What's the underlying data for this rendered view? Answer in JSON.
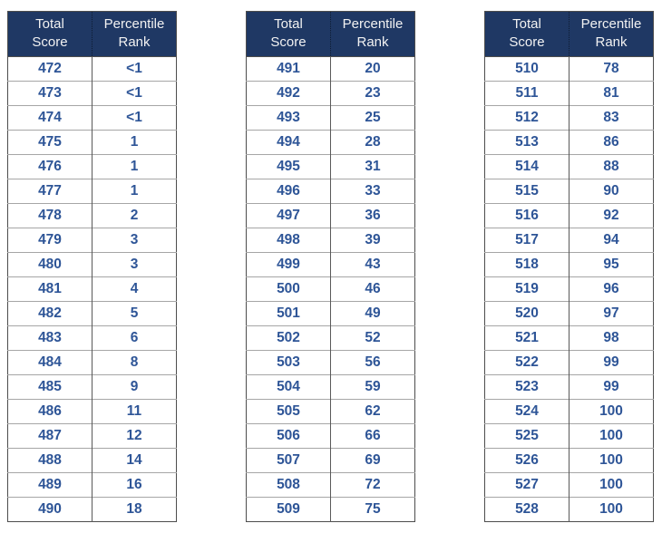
{
  "columns": [
    "Total Score",
    "Percentile Rank"
  ],
  "tables": [
    {
      "name": "scores-472-490",
      "rows": [
        [
          "472",
          "<1"
        ],
        [
          "473",
          "<1"
        ],
        [
          "474",
          "<1"
        ],
        [
          "475",
          "1"
        ],
        [
          "476",
          "1"
        ],
        [
          "477",
          "1"
        ],
        [
          "478",
          "2"
        ],
        [
          "479",
          "3"
        ],
        [
          "480",
          "3"
        ],
        [
          "481",
          "4"
        ],
        [
          "482",
          "5"
        ],
        [
          "483",
          "6"
        ],
        [
          "484",
          "8"
        ],
        [
          "485",
          "9"
        ],
        [
          "486",
          "11"
        ],
        [
          "487",
          "12"
        ],
        [
          "488",
          "14"
        ],
        [
          "489",
          "16"
        ],
        [
          "490",
          "18"
        ]
      ]
    },
    {
      "name": "scores-491-509",
      "rows": [
        [
          "491",
          "20"
        ],
        [
          "492",
          "23"
        ],
        [
          "493",
          "25"
        ],
        [
          "494",
          "28"
        ],
        [
          "495",
          "31"
        ],
        [
          "496",
          "33"
        ],
        [
          "497",
          "36"
        ],
        [
          "498",
          "39"
        ],
        [
          "499",
          "43"
        ],
        [
          "500",
          "46"
        ],
        [
          "501",
          "49"
        ],
        [
          "502",
          "52"
        ],
        [
          "503",
          "56"
        ],
        [
          "504",
          "59"
        ],
        [
          "505",
          "62"
        ],
        [
          "506",
          "66"
        ],
        [
          "507",
          "69"
        ],
        [
          "508",
          "72"
        ],
        [
          "509",
          "75"
        ]
      ]
    },
    {
      "name": "scores-510-528",
      "rows": [
        [
          "510",
          "78"
        ],
        [
          "511",
          "81"
        ],
        [
          "512",
          "83"
        ],
        [
          "513",
          "86"
        ],
        [
          "514",
          "88"
        ],
        [
          "515",
          "90"
        ],
        [
          "516",
          "92"
        ],
        [
          "517",
          "94"
        ],
        [
          "518",
          "95"
        ],
        [
          "519",
          "96"
        ],
        [
          "520",
          "97"
        ],
        [
          "521",
          "98"
        ],
        [
          "522",
          "99"
        ],
        [
          "523",
          "99"
        ],
        [
          "524",
          "100"
        ],
        [
          "525",
          "100"
        ],
        [
          "526",
          "100"
        ],
        [
          "527",
          "100"
        ],
        [
          "528",
          "100"
        ]
      ]
    }
  ],
  "colors": {
    "header_background": "#1F3864",
    "header_text": "#F2F2F2",
    "cell_text": "#2E5597",
    "outer_border": "#4d4d4d",
    "row_divider": "#A6A6A6"
  }
}
